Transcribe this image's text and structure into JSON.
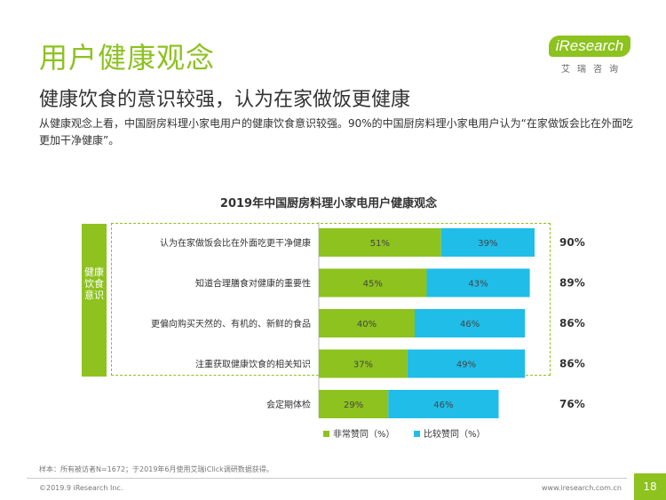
{
  "page": {
    "title": "用户健康观念",
    "subtitle": "健康饮食的意识较强，认为在家做饭更健康",
    "description": "从健康观念上看，中国厨房料理小家电用户的健康饮食意识较强。90%的中国厨房料理小家电用户认为“在家做饭会比在外面吃更加干净健康”。",
    "logo_main": "iResearch",
    "logo_sub": "艾瑞咨询",
    "side_label": "健康饮食意识",
    "footer_note": "样本：所有被访者N=1672；于2019年6月使用艾瑞iClick调研数据获得。",
    "copyright": "©2019.9 iResearch Inc.",
    "website": "www.iresearch.com.cn",
    "page_number": "18"
  },
  "chart_data": {
    "type": "bar",
    "orientation": "horizontal",
    "stacked": true,
    "title": "2019年中国厨房料理小家电用户健康观念",
    "categories": [
      "认为在家做饭会比在外面吃更干净健康",
      "知道合理膳食对健康的重要性",
      "更偏向购买天然的、有机的、新鲜的食品",
      "注重获取健康饮食的相关知识",
      "会定期体检"
    ],
    "series": [
      {
        "name": "非常赞同（%）",
        "color": "#8dc21f",
        "values": [
          51,
          45,
          40,
          37,
          29
        ]
      },
      {
        "name": "比较赞同（%）",
        "color": "#1fbde8",
        "values": [
          39,
          43,
          46,
          49,
          46
        ]
      }
    ],
    "totals": [
      90,
      89,
      86,
      86,
      76
    ],
    "value_suffix": "%",
    "xlim": [
      0,
      100
    ],
    "legend": "bottom-center",
    "grid": false
  }
}
